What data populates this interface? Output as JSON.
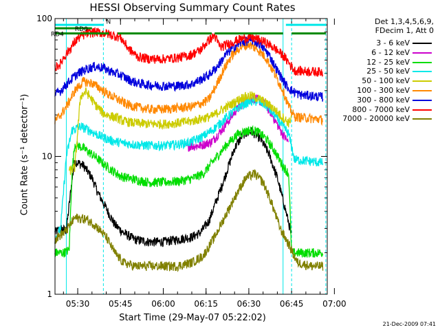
{
  "chart_data": {
    "type": "line",
    "title": "HESSI Observing Summary Count Rates",
    "xlabel": "Start Time (29-May-07 05:22:02)",
    "ylabel": "Count Rate (s⁻¹ detector⁻¹)",
    "yscale": "log",
    "ylim": [
      1,
      100
    ],
    "xlim": [
      "05:22:02",
      "06:57:30"
    ],
    "x_ticks": [
      "05:30",
      "05:45",
      "06:00",
      "06:15",
      "06:30",
      "06:45",
      "07:00"
    ],
    "y_ticks": [
      "1",
      "10",
      "100"
    ],
    "legend_header": [
      "Det 1,3,4,5,6,9,",
      "FDecim 1, Att 0"
    ],
    "legend_placement": "right",
    "series": [
      {
        "name": "3 - 6 keV",
        "color": "#000000",
        "points": [
          [
            "05:22",
            2.8
          ],
          [
            "05:24",
            3.0
          ],
          [
            "05:26",
            2.9
          ],
          [
            "05:28",
            6.8
          ],
          [
            "05:29",
            9.2
          ],
          [
            "05:32",
            8.6
          ],
          [
            "05:35",
            7.0
          ],
          [
            "05:37",
            5.5
          ],
          [
            "05:40",
            4.2
          ],
          [
            "05:43",
            3.2
          ],
          [
            "05:46",
            2.8
          ],
          [
            "05:50",
            2.5
          ],
          [
            "05:55",
            2.4
          ],
          [
            "06:00",
            2.4
          ],
          [
            "06:05",
            2.5
          ],
          [
            "06:10",
            2.6
          ],
          [
            "06:13",
            2.8
          ],
          [
            "06:16",
            3.4
          ],
          [
            "06:19",
            5.0
          ],
          [
            "06:22",
            7.5
          ],
          [
            "06:25",
            11.5
          ],
          [
            "06:28",
            14.5
          ],
          [
            "06:31",
            15.2
          ],
          [
            "06:34",
            13.5
          ],
          [
            "06:37",
            10.5
          ],
          [
            "06:40",
            7.0
          ],
          [
            "06:42",
            4.8
          ],
          [
            "06:44",
            3.3
          ],
          [
            "06:45",
            2.6
          ]
        ]
      },
      {
        "name": "6 - 12 keV",
        "color": "#cc00cc",
        "points": [
          [
            "06:08",
            11.8
          ],
          [
            "06:13",
            12.0
          ],
          [
            "06:17",
            12.8
          ],
          [
            "06:21",
            16.0
          ],
          [
            "06:25",
            21.0
          ],
          [
            "06:29",
            25.5
          ],
          [
            "06:32",
            26.5
          ],
          [
            "06:35",
            24.5
          ],
          [
            "06:38",
            20.5
          ],
          [
            "06:41",
            15.5
          ],
          [
            "06:44",
            12.5
          ]
        ]
      },
      {
        "name": "12 - 25 keV",
        "color": "#00dd00",
        "points": [
          [
            "05:22",
            2.0
          ],
          [
            "05:25",
            2.0
          ],
          [
            "05:27",
            2.1
          ],
          [
            "05:28",
            7.8
          ],
          [
            "05:29",
            12.3
          ],
          [
            "05:32",
            11.5
          ],
          [
            "05:36",
            10.0
          ],
          [
            "05:40",
            8.5
          ],
          [
            "05:45",
            7.2
          ],
          [
            "05:50",
            6.8
          ],
          [
            "05:55",
            6.5
          ],
          [
            "06:00",
            6.5
          ],
          [
            "06:05",
            6.6
          ],
          [
            "06:10",
            6.9
          ],
          [
            "06:14",
            7.5
          ],
          [
            "06:18",
            9.5
          ],
          [
            "06:22",
            12.0
          ],
          [
            "06:26",
            14.5
          ],
          [
            "06:30",
            15.5
          ],
          [
            "06:33",
            15.2
          ],
          [
            "06:36",
            13.5
          ],
          [
            "06:39",
            11.0
          ],
          [
            "06:42",
            8.5
          ],
          [
            "06:44",
            7.5
          ],
          [
            "06:45",
            2.0
          ],
          [
            "06:50",
            2.0
          ],
          [
            "06:56",
            2.0
          ]
        ]
      },
      {
        "name": "25 - 50 keV",
        "color": "#00e8e8",
        "points": [
          [
            "05:22",
            2.5
          ],
          [
            "05:24",
            3.0
          ],
          [
            "05:26",
            10.0
          ],
          [
            "05:28",
            15.5
          ],
          [
            "05:31",
            16.5
          ],
          [
            "05:34",
            15.5
          ],
          [
            "05:38",
            14.0
          ],
          [
            "05:42",
            13.0
          ],
          [
            "05:46",
            12.5
          ],
          [
            "05:50",
            12.2
          ],
          [
            "05:55",
            12.0
          ],
          [
            "06:00",
            12.0
          ],
          [
            "06:05",
            12.2
          ],
          [
            "06:10",
            12.8
          ],
          [
            "06:14",
            14.0
          ],
          [
            "06:18",
            16.0
          ],
          [
            "06:22",
            19.0
          ],
          [
            "06:26",
            22.5
          ],
          [
            "06:30",
            25.0
          ],
          [
            "06:33",
            25.2
          ],
          [
            "06:36",
            23.5
          ],
          [
            "06:39",
            20.0
          ],
          [
            "06:42",
            16.5
          ],
          [
            "06:44",
            14.5
          ],
          [
            "06:46",
            9.5
          ],
          [
            "06:50",
            9.3
          ],
          [
            "06:56",
            9.0
          ]
        ]
      },
      {
        "name": "50 - 100 keV",
        "color": "#cccc00",
        "points": [
          [
            "05:27",
            7.8
          ],
          [
            "05:29",
            8.3
          ],
          [
            "05:31",
            27.5
          ],
          [
            "05:33",
            29.5
          ],
          [
            "05:36",
            24.0
          ],
          [
            "05:39",
            20.5
          ],
          [
            "05:42",
            19.5
          ],
          [
            "05:44",
            19.0
          ],
          [
            "05:46",
            18.0
          ],
          [
            "05:50",
            17.5
          ],
          [
            "05:55",
            17.2
          ],
          [
            "06:00",
            17.2
          ],
          [
            "06:05",
            17.5
          ],
          [
            "06:10",
            18.0
          ],
          [
            "06:14",
            19.0
          ],
          [
            "06:17",
            19.5
          ],
          [
            "06:20",
            21.5
          ],
          [
            "06:24",
            24.0
          ],
          [
            "06:28",
            27.0
          ],
          [
            "06:31",
            27.5
          ],
          [
            "06:34",
            26.0
          ],
          [
            "06:38",
            23.0
          ],
          [
            "06:41",
            20.0
          ],
          [
            "06:44",
            17.5
          ],
          [
            "06:45",
            19.5
          ]
        ]
      },
      {
        "name": "100 - 300 keV",
        "color": "#ff8800",
        "points": [
          [
            "05:22",
            18.0
          ],
          [
            "05:24",
            20.0
          ],
          [
            "05:26",
            23.0
          ],
          [
            "05:29",
            30.0
          ],
          [
            "05:32",
            35.0
          ],
          [
            "05:35",
            34.0
          ],
          [
            "05:38",
            31.0
          ],
          [
            "05:41",
            28.0
          ],
          [
            "05:44",
            26.0
          ],
          [
            "05:47",
            24.0
          ],
          [
            "05:50",
            23.0
          ],
          [
            "05:55",
            22.0
          ],
          [
            "06:00",
            22.0
          ],
          [
            "06:05",
            22.5
          ],
          [
            "06:10",
            23.0
          ],
          [
            "06:14",
            24.5
          ],
          [
            "06:16",
            26.0
          ],
          [
            "06:18",
            31.0
          ],
          [
            "06:21",
            42.0
          ],
          [
            "06:24",
            54.0
          ],
          [
            "06:27",
            62.0
          ],
          [
            "06:30",
            65.0
          ],
          [
            "06:33",
            60.0
          ],
          [
            "06:36",
            52.0
          ],
          [
            "06:39",
            40.0
          ],
          [
            "06:42",
            30.0
          ],
          [
            "06:44",
            23.0
          ],
          [
            "06:46",
            19.5
          ],
          [
            "06:50",
            19.0
          ],
          [
            "06:56",
            18.5
          ]
        ]
      },
      {
        "name": "300 - 800 keV",
        "color": "#0000dd",
        "points": [
          [
            "05:22",
            28.0
          ],
          [
            "05:24",
            30.0
          ],
          [
            "05:27",
            35.0
          ],
          [
            "05:30",
            40.0
          ],
          [
            "05:33",
            43.0
          ],
          [
            "05:36",
            45.0
          ],
          [
            "05:39",
            44.0
          ],
          [
            "05:42",
            41.0
          ],
          [
            "05:45",
            39.0
          ],
          [
            "05:48",
            36.0
          ],
          [
            "05:51",
            34.0
          ],
          [
            "05:55",
            33.0
          ],
          [
            "06:00",
            32.5
          ],
          [
            "06:05",
            32.5
          ],
          [
            "06:10",
            33.5
          ],
          [
            "06:13",
            36.0
          ],
          [
            "06:16",
            39.0
          ],
          [
            "06:19",
            45.0
          ],
          [
            "06:22",
            55.0
          ],
          [
            "06:25",
            63.0
          ],
          [
            "06:28",
            68.0
          ],
          [
            "06:31",
            70.0
          ],
          [
            "06:34",
            65.0
          ],
          [
            "06:37",
            55.0
          ],
          [
            "06:40",
            42.0
          ],
          [
            "06:43",
            33.0
          ],
          [
            "06:45",
            30.0
          ],
          [
            "06:48",
            28.0
          ],
          [
            "06:52",
            27.5
          ],
          [
            "06:56",
            27.0
          ]
        ]
      },
      {
        "name": "800 - 7000 keV",
        "color": "#ff0000",
        "points": [
          [
            "05:22",
            44.0
          ],
          [
            "05:24",
            47.0
          ],
          [
            "05:25",
            52.0
          ],
          [
            "05:30",
            72.0
          ],
          [
            "05:33",
            78.0
          ],
          [
            "05:36",
            80.0
          ],
          [
            "05:40",
            78.0
          ],
          [
            "05:43",
            75.0
          ],
          [
            "05:45",
            73.0
          ],
          [
            "05:48",
            60.0
          ],
          [
            "05:51",
            53.0
          ],
          [
            "05:55",
            51.0
          ],
          [
            "06:00",
            51.0
          ],
          [
            "06:05",
            52.0
          ],
          [
            "06:09",
            54.0
          ],
          [
            "06:13",
            59.0
          ],
          [
            "06:16",
            70.0
          ],
          [
            "06:18",
            75.0
          ],
          [
            "06:20",
            62.0
          ],
          [
            "06:24",
            67.0
          ],
          [
            "06:27",
            71.0
          ],
          [
            "06:30",
            73.0
          ],
          [
            "06:33",
            71.0
          ],
          [
            "06:36",
            67.0
          ],
          [
            "06:39",
            61.0
          ],
          [
            "06:42",
            54.0
          ],
          [
            "06:44",
            48.0
          ],
          [
            "06:46",
            42.0
          ],
          [
            "06:50",
            41.5
          ],
          [
            "06:56",
            41.0
          ]
        ]
      },
      {
        "name": "7000 - 20000 keV",
        "color": "#808000",
        "points": [
          [
            "05:22",
            2.5
          ],
          [
            "05:26",
            2.9
          ],
          [
            "05:29",
            3.6
          ],
          [
            "05:33",
            3.5
          ],
          [
            "05:36",
            3.2
          ],
          [
            "05:40",
            2.6
          ],
          [
            "05:43",
            2.0
          ],
          [
            "05:46",
            1.7
          ],
          [
            "05:50",
            1.6
          ],
          [
            "05:55",
            1.6
          ],
          [
            "06:00",
            1.6
          ],
          [
            "06:05",
            1.6
          ],
          [
            "06:10",
            1.7
          ],
          [
            "06:14",
            1.9
          ],
          [
            "06:18",
            2.6
          ],
          [
            "06:22",
            3.8
          ],
          [
            "06:26",
            5.5
          ],
          [
            "06:29",
            7.0
          ],
          [
            "06:32",
            7.5
          ],
          [
            "06:35",
            6.5
          ],
          [
            "06:38",
            4.6
          ],
          [
            "06:41",
            3.0
          ],
          [
            "06:44",
            2.3
          ],
          [
            "06:47",
            1.7
          ],
          [
            "06:52",
            1.6
          ],
          [
            "06:56",
            1.6
          ]
        ]
      }
    ],
    "state_bars": [
      {
        "label": "RD0",
        "color": "#008800",
        "level": 85,
        "segments": [
          [
            "05:22",
            "05:35"
          ]
        ]
      },
      {
        "label": "RD4",
        "color": "#008800",
        "level": 78,
        "segments": [
          [
            "05:22",
            "05:41"
          ],
          [
            "05:44",
            "06:17"
          ],
          [
            "06:18",
            "06:42"
          ],
          [
            "06:45",
            "06:57"
          ]
        ]
      },
      {
        "label": "N",
        "color": "#00e8e8",
        "level": 90,
        "segments": [
          [
            "05:22",
            "05:39"
          ],
          [
            "06:43",
            "06:57"
          ]
        ]
      }
    ],
    "vertical_lines": [
      {
        "time": "05:26",
        "color": "#00e8e8",
        "style": "solid"
      },
      {
        "time": "05:39",
        "color": "#00e8e8",
        "style": "dashed"
      },
      {
        "time": "06:42",
        "color": "#00e8e8",
        "style": "solid"
      },
      {
        "time": "06:45",
        "color": "#00e8e8",
        "style": "dashed"
      },
      {
        "time": "06:57",
        "color": "#00e8e8",
        "style": "dashed"
      }
    ]
  },
  "timestamp": "21-Dec-2009 07:41"
}
